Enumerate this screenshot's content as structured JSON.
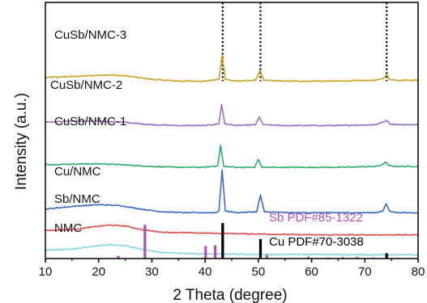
{
  "chart_data": {
    "type": "line",
    "title": "",
    "xlabel": "2 Theta (degree)",
    "ylabel": "Intensity (a.u.)",
    "xlim": [
      10,
      80
    ],
    "x_ticks": [
      10,
      20,
      30,
      40,
      50,
      60,
      70,
      80
    ],
    "y_ticks_shown": false,
    "grid": false,
    "legend": "none (inline curve labels)",
    "series": [
      {
        "name": "CuSb/NMC-3",
        "color": "#c9a227",
        "points": [
          [
            10,
            100
          ],
          [
            18,
            101
          ],
          [
            22,
            101.5
          ],
          [
            25,
            101
          ],
          [
            30,
            99
          ],
          [
            35,
            98
          ],
          [
            40,
            98
          ],
          [
            42.6,
            99
          ],
          [
            43.2,
            113
          ],
          [
            43.8,
            99
          ],
          [
            46,
            98
          ],
          [
            49.5,
            98.5
          ],
          [
            50.3,
            104
          ],
          [
            51,
            98.5
          ],
          [
            55,
            98
          ],
          [
            60,
            98
          ],
          [
            65,
            98
          ],
          [
            72,
            98.5
          ],
          [
            73.5,
            99.5
          ],
          [
            74.1,
            102
          ],
          [
            74.6,
            99
          ],
          [
            76,
            98.5
          ],
          [
            80,
            98.5
          ]
        ]
      },
      {
        "name": "CuSb/NMC-2",
        "color": "#9b6fc1",
        "points": [
          [
            10,
            75
          ],
          [
            15,
            75.5
          ],
          [
            20,
            75.5
          ],
          [
            24,
            75
          ],
          [
            30,
            73.5
          ],
          [
            35,
            73
          ],
          [
            40,
            73
          ],
          [
            42.6,
            74
          ],
          [
            43.1,
            85
          ],
          [
            43.7,
            74
          ],
          [
            46,
            73
          ],
          [
            49.5,
            73.5
          ],
          [
            50.2,
            78
          ],
          [
            50.9,
            73.5
          ],
          [
            55,
            73
          ],
          [
            60,
            73
          ],
          [
            65,
            73
          ],
          [
            72,
            73.5
          ],
          [
            73.5,
            75
          ],
          [
            74.1,
            76
          ],
          [
            74.7,
            74
          ],
          [
            76,
            73.5
          ],
          [
            80,
            73.5
          ]
        ]
      },
      {
        "name": "CuSb/NMC-1",
        "color": "#2eae6d",
        "points": [
          [
            10,
            51
          ],
          [
            15,
            51.3
          ],
          [
            20,
            51.5
          ],
          [
            24,
            51
          ],
          [
            30,
            50
          ],
          [
            35,
            49.5
          ],
          [
            40,
            49.5
          ],
          [
            42.4,
            50.5
          ],
          [
            42.9,
            62
          ],
          [
            43.5,
            50
          ],
          [
            46,
            49.5
          ],
          [
            49.3,
            49.5
          ],
          [
            50,
            54
          ],
          [
            50.7,
            49.5
          ],
          [
            55,
            49.5
          ],
          [
            60,
            49.5
          ],
          [
            65,
            49.5
          ],
          [
            72,
            50
          ],
          [
            73.3,
            51
          ],
          [
            73.9,
            52.5
          ],
          [
            74.5,
            50.5
          ],
          [
            76,
            50
          ],
          [
            80,
            50
          ]
        ]
      },
      {
        "name": "Cu/NMC",
        "color": "#3a6bbf",
        "points": [
          [
            10,
            26
          ],
          [
            15,
            27.5
          ],
          [
            20,
            28.5
          ],
          [
            24,
            28
          ],
          [
            28,
            26
          ],
          [
            32,
            24.5
          ],
          [
            36,
            24
          ],
          [
            42,
            24
          ],
          [
            42.6,
            25
          ],
          [
            43.2,
            48
          ],
          [
            43.8,
            25
          ],
          [
            46,
            24
          ],
          [
            49.7,
            24.5
          ],
          [
            50.4,
            34
          ],
          [
            51.1,
            24.5
          ],
          [
            55,
            24
          ],
          [
            60,
            24
          ],
          [
            65,
            24
          ],
          [
            72,
            24
          ],
          [
            73.4,
            25
          ],
          [
            74,
            29
          ],
          [
            74.6,
            25
          ],
          [
            76,
            24
          ],
          [
            80,
            24
          ]
        ]
      },
      {
        "name": "Sb/NMC",
        "color": "#e44b4b",
        "points": [
          [
            10,
            14
          ],
          [
            15,
            14.5
          ],
          [
            19,
            16
          ],
          [
            22,
            17
          ],
          [
            25,
            16.5
          ],
          [
            28,
            14.5
          ],
          [
            32,
            13
          ],
          [
            40,
            12.5
          ],
          [
            50,
            12
          ],
          [
            60,
            11.5
          ],
          [
            70,
            11.5
          ],
          [
            80,
            11.5
          ]
        ]
      },
      {
        "name": "NMC",
        "color": "#86d4e0",
        "points": [
          [
            10,
            3
          ],
          [
            15,
            3.5
          ],
          [
            19,
            5
          ],
          [
            22,
            6
          ],
          [
            25,
            5.5
          ],
          [
            28,
            3.5
          ],
          [
            32,
            1.5
          ],
          [
            40,
            0.8
          ],
          [
            50,
            0.5
          ],
          [
            60,
            0.5
          ],
          [
            70,
            0.3
          ],
          [
            80,
            0.3
          ]
        ]
      }
    ],
    "reference_patterns": [
      {
        "name": "Sb PDF#85-1322",
        "color": "#b14fb1",
        "peaks": [
          [
            23.7,
            1.5
          ],
          [
            28.7,
            19
          ],
          [
            40.1,
            7
          ],
          [
            41.9,
            7.5
          ],
          [
            51.6,
            2
          ],
          [
            59.4,
            1
          ],
          [
            63.1,
            0.6
          ],
          [
            65.9,
            0.8
          ],
          [
            68.6,
            1
          ],
          [
            71.6,
            0.6
          ],
          [
            76.1,
            0.5
          ]
        ]
      },
      {
        "name": "Cu PDF#70-3038",
        "color": "#000000",
        "peaks": [
          [
            43.3,
            20
          ],
          [
            50.4,
            11
          ],
          [
            74.1,
            3
          ]
        ]
      }
    ],
    "dotted_guides_x": [
      43.3,
      50.4,
      74.1
    ]
  }
}
